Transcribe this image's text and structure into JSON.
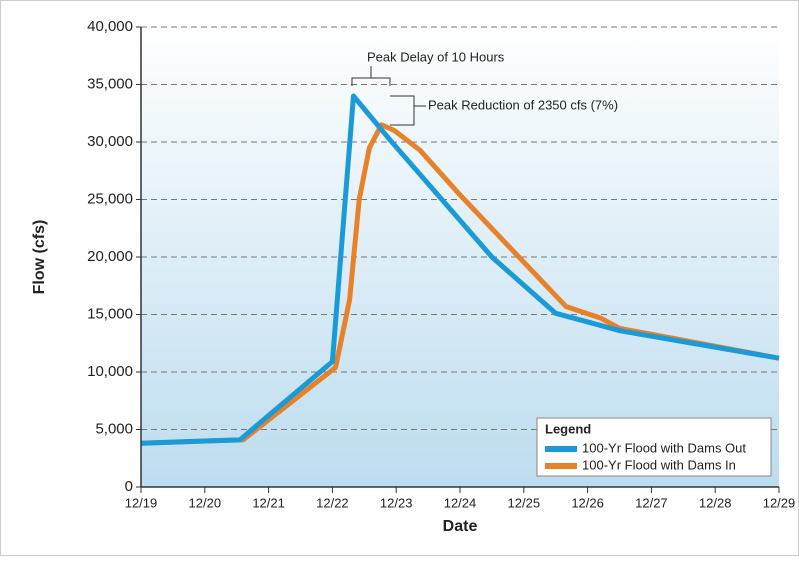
{
  "chart_data": {
    "type": "line",
    "xlabel": "Date",
    "ylabel": "Flow (cfs)",
    "xlim": [
      0,
      10
    ],
    "xticks": [
      {
        "value": 0,
        "label": "12/19"
      },
      {
        "value": 1,
        "label": "12/20"
      },
      {
        "value": 2,
        "label": "12/21"
      },
      {
        "value": 3,
        "label": "12/22"
      },
      {
        "value": 4,
        "label": "12/23"
      },
      {
        "value": 5,
        "label": "12/24"
      },
      {
        "value": 6,
        "label": "12/25"
      },
      {
        "value": 7,
        "label": "12/26"
      },
      {
        "value": 8,
        "label": "12/27"
      },
      {
        "value": 9,
        "label": "12/28"
      },
      {
        "value": 10,
        "label": "12/29"
      }
    ],
    "ylim": [
      0,
      40000
    ],
    "yticks": [
      0,
      {
        "value": 5000,
        "label": "5,000"
      },
      {
        "value": 10000,
        "label": "10,000"
      },
      {
        "value": 15000,
        "label": "15,000"
      },
      {
        "value": 20000,
        "label": "20,000"
      },
      {
        "value": 25000,
        "label": "25,000"
      },
      {
        "value": 30000,
        "label": "30,000"
      },
      {
        "value": 35000,
        "label": "35,000"
      },
      {
        "value": 40000,
        "label": "40,000"
      }
    ],
    "grid": true,
    "legend_title": "Legend",
    "legend": "lower right",
    "annotations": [
      "Peak Delay of 10 Hours",
      "Peak Reduction of 2350 cfs (7%)"
    ],
    "series": [
      {
        "name": "100-Yr Flood with Dams Out",
        "color": "#1a9ad6",
        "x": [
          0,
          1,
          1.55,
          3.0,
          3.33,
          3.9,
          5.5,
          6.5,
          7.5,
          10
        ],
        "values": [
          3800,
          4000,
          4100,
          10900,
          34000,
          30200,
          20000,
          15100,
          13600,
          11200
        ]
      },
      {
        "name": "100-Yr Flood with Dams In",
        "color": "#e8822a",
        "x": [
          0,
          1,
          1.6,
          3.05,
          3.27,
          3.42,
          3.58,
          3.77,
          3.97,
          4.37,
          5.0,
          5.94,
          6.66,
          7.2,
          7.5,
          10
        ],
        "values": [
          3800,
          4000,
          4100,
          10400,
          16300,
          25000,
          29500,
          31500,
          31000,
          29300,
          25400,
          19900,
          15700,
          14700,
          13800,
          11200
        ]
      }
    ]
  }
}
